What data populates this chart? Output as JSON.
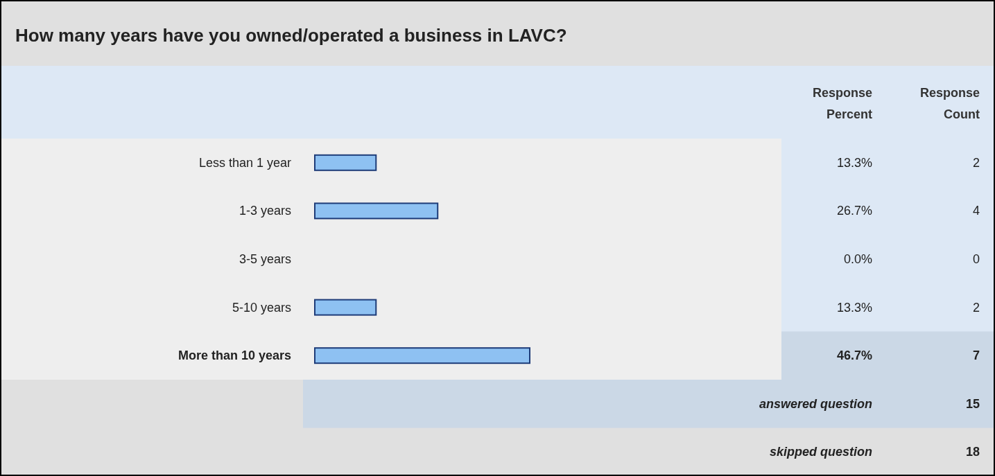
{
  "chart_data": {
    "type": "bar",
    "orientation": "horizontal",
    "title": "How many years have you owned/operated a business in LAVC?",
    "categories": [
      "Less than 1 year",
      "1-3 years",
      "3-5 years",
      "5-10 years",
      "More than 10 years"
    ],
    "values": [
      13.3,
      26.7,
      0.0,
      13.3,
      46.7
    ],
    "value_labels": [
      "13.3%",
      "26.7%",
      "0.0%",
      "13.3%",
      "46.7%"
    ],
    "color": "#8ec1f2",
    "tick_labels": false,
    "annotations": [
      "Response Percent",
      "Response Count",
      "2",
      "4",
      "0",
      "2",
      "7",
      "answered question",
      "15",
      "skipped question",
      "18"
    ]
  }
}
